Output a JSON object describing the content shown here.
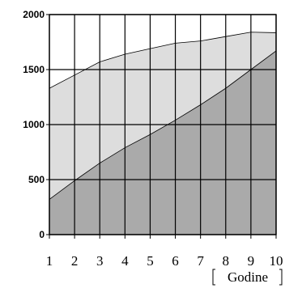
{
  "chart_data": {
    "type": "area",
    "title": "",
    "xlabel": "Godine",
    "ylabel": "",
    "x": [
      1,
      2,
      3,
      4,
      5,
      6,
      7,
      8,
      9,
      10
    ],
    "x_ticks": [
      "1",
      "2",
      "3",
      "4",
      "5",
      "6",
      "7",
      "8",
      "9",
      "10"
    ],
    "y_ticks": [
      "0",
      "500",
      "1000",
      "1500",
      "2000"
    ],
    "xlim": [
      1,
      10
    ],
    "ylim": [
      0,
      2000
    ],
    "grid": true,
    "series": [
      {
        "values": [
          1330,
          1450,
          1570,
          1640,
          1690,
          1740,
          1760,
          1800,
          1840,
          1835
        ],
        "color": "#dddddd"
      },
      {
        "values": [
          320,
          490,
          650,
          790,
          910,
          1040,
          1180,
          1330,
          1500,
          1670
        ],
        "color": "#aaaaaa"
      }
    ]
  }
}
